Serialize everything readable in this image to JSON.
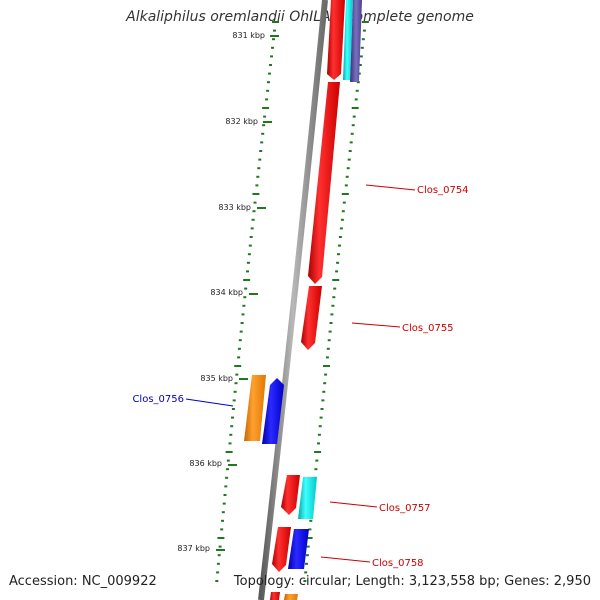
{
  "title": "Alkaliphilus oremlandii OhILAs, complete genome",
  "accession": "Accession: NC_009922",
  "summary": "Topology: circular; Length: 3,123,558 bp; Genes: 2,950",
  "scale_labels": [
    "831 kbp",
    "832 kbp",
    "833 kbp",
    "834 kbp",
    "835 kbp",
    "836 kbp",
    "837 kbp"
  ],
  "gene_labels": [
    {
      "text": "Clos_0754",
      "strand": "plus",
      "color": "#cc0000"
    },
    {
      "text": "Clos_0755",
      "strand": "plus",
      "color": "#cc0000"
    },
    {
      "text": "Clos_0756",
      "strand": "minus",
      "color": "#0000cc"
    },
    {
      "text": "Clos_0757",
      "strand": "plus",
      "color": "#cc0000"
    },
    {
      "text": "Clos_0758",
      "strand": "plus",
      "color": "#cc0000"
    }
  ],
  "colors": {
    "backbone": "#8a8a8a",
    "tick": "#1f7a1f",
    "gene_red": "#ee0000",
    "gene_blue": "#0000ee",
    "gene_cyan": "#00e5e5",
    "gene_orange": "#ff8c00",
    "gene_purple": "#5a4e9a"
  }
}
